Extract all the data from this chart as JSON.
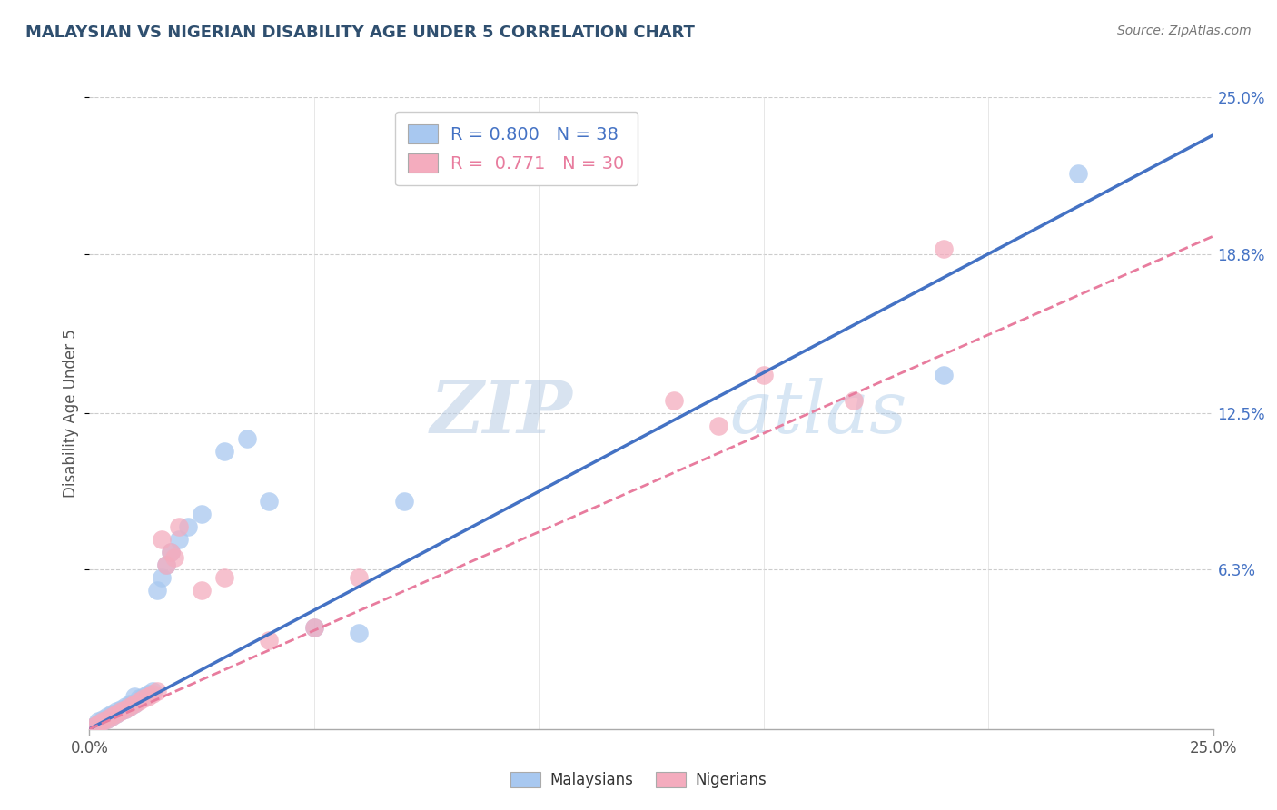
{
  "title": "MALAYSIAN VS NIGERIAN DISABILITY AGE UNDER 5 CORRELATION CHART",
  "source": "Source: ZipAtlas.com",
  "ylabel": "Disability Age Under 5",
  "xlim": [
    0.0,
    0.25
  ],
  "ylim": [
    0.0,
    0.25
  ],
  "ytick_labels": [
    "6.3%",
    "12.5%",
    "18.8%",
    "25.0%"
  ],
  "ytick_values": [
    0.063,
    0.125,
    0.188,
    0.25
  ],
  "r_malaysian": 0.8,
  "n_malaysian": 38,
  "r_nigerian": 0.771,
  "n_nigerian": 30,
  "color_malaysian": "#A8C8F0",
  "color_nigerian": "#F4ACBE",
  "line_color_malaysian": "#4472C4",
  "line_color_nigerian": "#E87C9E",
  "watermark_zip": "ZIP",
  "watermark_atlas": "atlas",
  "malaysian_x": [
    0.001,
    0.002,
    0.002,
    0.003,
    0.003,
    0.004,
    0.004,
    0.005,
    0.005,
    0.006,
    0.006,
    0.007,
    0.007,
    0.008,
    0.008,
    0.009,
    0.009,
    0.01,
    0.01,
    0.011,
    0.012,
    0.013,
    0.014,
    0.015,
    0.016,
    0.017,
    0.018,
    0.02,
    0.022,
    0.025,
    0.03,
    0.035,
    0.04,
    0.05,
    0.06,
    0.07,
    0.19,
    0.22
  ],
  "malaysian_y": [
    0.001,
    0.002,
    0.003,
    0.003,
    0.004,
    0.004,
    0.005,
    0.005,
    0.006,
    0.006,
    0.007,
    0.007,
    0.008,
    0.008,
    0.009,
    0.009,
    0.01,
    0.01,
    0.013,
    0.012,
    0.013,
    0.014,
    0.015,
    0.055,
    0.06,
    0.065,
    0.07,
    0.075,
    0.08,
    0.085,
    0.11,
    0.115,
    0.09,
    0.04,
    0.038,
    0.09,
    0.14,
    0.22
  ],
  "nigerian_x": [
    0.001,
    0.002,
    0.003,
    0.004,
    0.005,
    0.006,
    0.007,
    0.008,
    0.009,
    0.01,
    0.011,
    0.012,
    0.013,
    0.014,
    0.015,
    0.016,
    0.017,
    0.018,
    0.019,
    0.02,
    0.025,
    0.03,
    0.04,
    0.05,
    0.06,
    0.13,
    0.14,
    0.15,
    0.17,
    0.19
  ],
  "nigerian_y": [
    0.001,
    0.002,
    0.003,
    0.004,
    0.005,
    0.006,
    0.007,
    0.008,
    0.009,
    0.01,
    0.011,
    0.012,
    0.013,
    0.014,
    0.015,
    0.075,
    0.065,
    0.07,
    0.068,
    0.08,
    0.055,
    0.06,
    0.035,
    0.04,
    0.06,
    0.13,
    0.12,
    0.14,
    0.13,
    0.19
  ],
  "line_malaysian_x0": 0.0,
  "line_malaysian_y0": 0.0,
  "line_malaysian_x1": 0.25,
  "line_malaysian_y1": 0.235,
  "line_nigerian_x0": 0.0,
  "line_nigerian_y0": 0.0,
  "line_nigerian_x1": 0.25,
  "line_nigerian_y1": 0.195
}
